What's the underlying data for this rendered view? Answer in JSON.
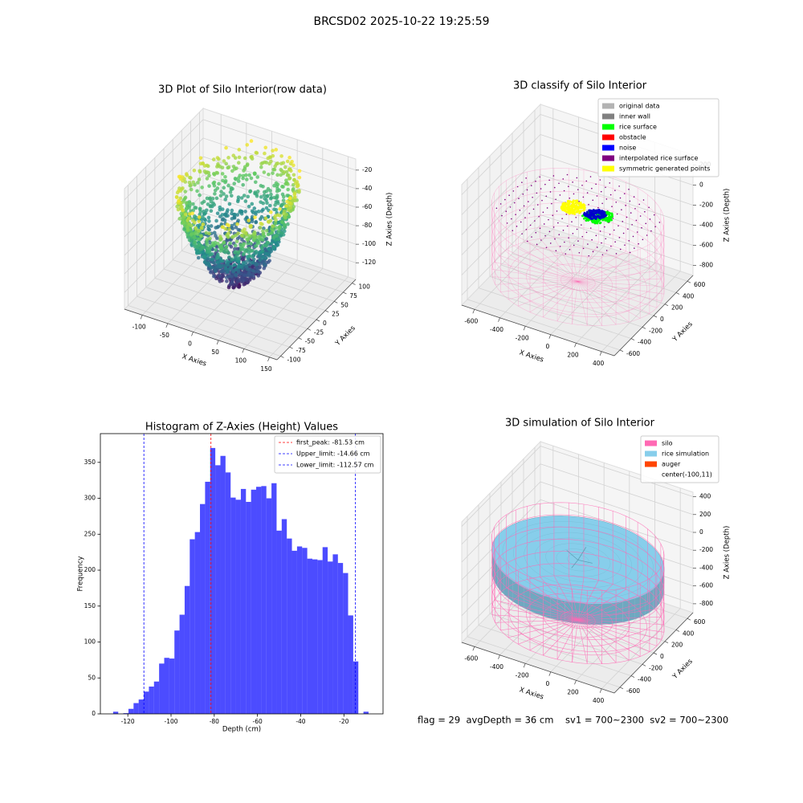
{
  "title": "BRCSD02 2025-10-22 19:25:59",
  "footer": "flag = 29  avgDepth = 36 cm    sv1 = 700~2300  sv2 = 700~2300",
  "chart_data": [
    {
      "type": "scatter3d",
      "title": "3D Plot of Silo Interior(row data)",
      "xlabel": "X Axies",
      "ylabel": "Y Axies",
      "zlabel": "Z Axies (Depth)",
      "xlim": [
        -135,
        165
      ],
      "xticks": [
        -100,
        -50,
        0,
        50,
        100,
        150
      ],
      "ylim": [
        -110,
        110
      ],
      "yticks": [
        -100,
        -75,
        -50,
        -25,
        0,
        25,
        50,
        75,
        100
      ],
      "zlim": [
        -138,
        -8
      ],
      "zticks": [
        -120,
        -100,
        -80,
        -60,
        -40,
        -20
      ]
    },
    {
      "type": "classify3d",
      "title": "3D classify of Silo Interior",
      "xlabel": "X Axies",
      "ylabel": "Y Axies",
      "zlabel": "Z Axies (Depth)",
      "xlim": [
        -700,
        500
      ],
      "xticks": [
        -600,
        -400,
        -200,
        0,
        200,
        400
      ],
      "ylim": [
        -700,
        700
      ],
      "yticks": [
        -600,
        -400,
        -200,
        0,
        200,
        400,
        600
      ],
      "zlim": [
        -900,
        300
      ],
      "zticks": [
        -800,
        -600,
        -400,
        -200,
        0,
        200
      ],
      "legend": [
        {
          "name": "original data",
          "color": "#b3b3b3"
        },
        {
          "name": "inner wall",
          "color": "#808080"
        },
        {
          "name": "rice surface",
          "color": "#00ff00"
        },
        {
          "name": "obstacle",
          "color": "#ff0000"
        },
        {
          "name": "noise",
          "color": "#0000ff"
        },
        {
          "name": "interpolated rice surface",
          "color": "#800080"
        },
        {
          "name": "symmetric generated points",
          "color": "#ffff00"
        }
      ]
    },
    {
      "type": "histogram",
      "title": "Histogram of Z-Axies (Height) Values",
      "xlabel": "Depth (cm)",
      "ylabel": "Frequency",
      "color": "#0000ff",
      "alpha": 0.7,
      "bins": [
        -126.8,
        -124.436,
        -122.072,
        -119.708,
        -117.344,
        -114.98,
        -112.616,
        -110.252,
        -107.888,
        -105.524,
        -103.16,
        -100.796,
        -98.432,
        -96.068,
        -93.704,
        -91.34,
        -88.976,
        -86.612,
        -84.248,
        -81.884,
        -79.52,
        -77.156,
        -74.792,
        -72.428,
        -70.064,
        -67.7,
        -65.336,
        -62.972,
        -60.608,
        -58.244,
        -55.88,
        -53.516,
        -51.152,
        -48.788,
        -46.424,
        -44.06,
        -41.696,
        -39.332,
        -36.968,
        -34.604,
        -32.24,
        -29.876,
        -27.512,
        -25.148,
        -22.784,
        -20.42,
        -18.056,
        -15.692,
        -13.328,
        -10.964,
        -8.6
      ],
      "values": [
        3,
        0,
        1,
        7,
        15,
        20,
        31,
        38,
        45,
        70,
        78,
        77,
        116,
        138,
        178,
        243,
        253,
        292,
        323,
        370,
        346,
        359,
        336,
        301,
        298,
        313,
        295,
        312,
        316,
        317,
        300,
        321,
        255,
        271,
        244,
        227,
        233,
        231,
        216,
        215,
        214,
        232,
        212,
        222,
        210,
        196,
        137,
        73,
        0,
        3
      ],
      "xlim": [
        -132.7,
        -1.9
      ],
      "xticks": [
        -120,
        -100,
        -80,
        -60,
        -40,
        -20
      ],
      "ylim": [
        0,
        390
      ],
      "yticks": [
        0,
        50,
        100,
        150,
        200,
        250,
        300,
        350
      ],
      "lines": [
        {
          "label": "first_peak: -81.53 cm",
          "value": -81.53,
          "color": "#ff0000"
        },
        {
          "label": "Upper_limit: -14.66 cm",
          "value": -14.66,
          "color": "#0000ff"
        },
        {
          "label": "Lower_limit: -112.57 cm",
          "value": -112.57,
          "color": "#0000ff"
        }
      ]
    },
    {
      "type": "simulation3d",
      "title": "3D simulation of Silo Interior",
      "xlabel": "X Axies",
      "ylabel": "Y Axies",
      "zlabel": "Z Axies (Depth)",
      "xlim": [
        -700,
        500
      ],
      "xticks": [
        -600,
        -400,
        -200,
        0,
        200,
        400
      ],
      "ylim": [
        -700,
        700
      ],
      "yticks": [
        -600,
        -400,
        -200,
        0,
        200,
        400,
        600
      ],
      "zlim": [
        -900,
        450
      ],
      "zticks": [
        -800,
        -600,
        -400,
        -200,
        0,
        200,
        400
      ],
      "legend": [
        {
          "name": "silo",
          "color": "#ff69b4"
        },
        {
          "name": "rice simulation",
          "color": "#87ceeb"
        },
        {
          "name": "auger",
          "color": "#ff4500"
        },
        {
          "name": "center(-100,11)"
        }
      ]
    }
  ]
}
